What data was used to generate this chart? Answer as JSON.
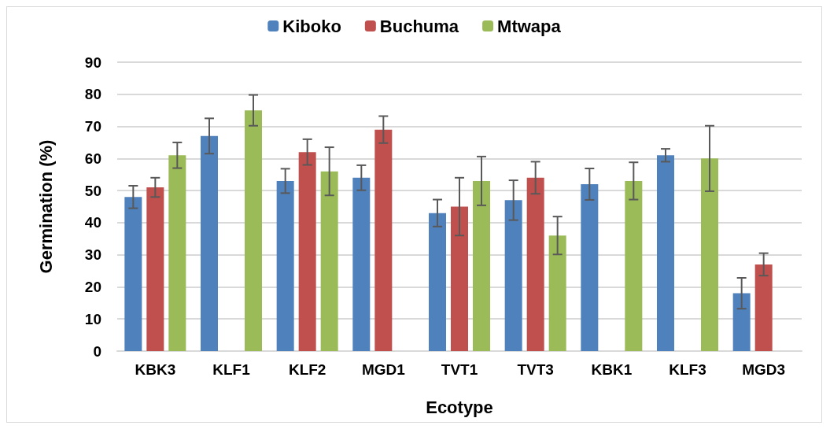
{
  "chart_data": {
    "type": "bar",
    "xlabel": "Ecotype",
    "ylabel": "Germination (%)",
    "categories": [
      "KBK3",
      "KLF1",
      "KLF2",
      "MGD1",
      "TVT1",
      "TVT3",
      "KBK1",
      "KLF3",
      "MGD3"
    ],
    "series": [
      {
        "name": "Kiboko",
        "color": "#4f81bd",
        "values": [
          48,
          67,
          53,
          54,
          43,
          47,
          52,
          61,
          18
        ],
        "errors": [
          3.5,
          5.5,
          3.8,
          3.9,
          4.2,
          6.2,
          4.9,
          2,
          4.8
        ]
      },
      {
        "name": "Buchuma",
        "color": "#c0504d",
        "values": [
          51,
          null,
          62,
          69,
          45,
          54,
          null,
          null,
          27
        ],
        "errors": [
          3,
          null,
          4,
          4.2,
          9,
          5,
          null,
          null,
          3.5
        ]
      },
      {
        "name": "Mtwapa",
        "color": "#9bbb59",
        "values": [
          61,
          75,
          56,
          null,
          53,
          36,
          53,
          60,
          null
        ],
        "errors": [
          4,
          4.8,
          7.5,
          null,
          7.6,
          5.9,
          5.8,
          10.2,
          null
        ]
      }
    ],
    "ylim": [
      0,
      90
    ],
    "yticks": [
      0,
      10,
      20,
      30,
      40,
      50,
      60,
      70,
      80,
      90
    ],
    "grid": "y",
    "legend": "top"
  }
}
